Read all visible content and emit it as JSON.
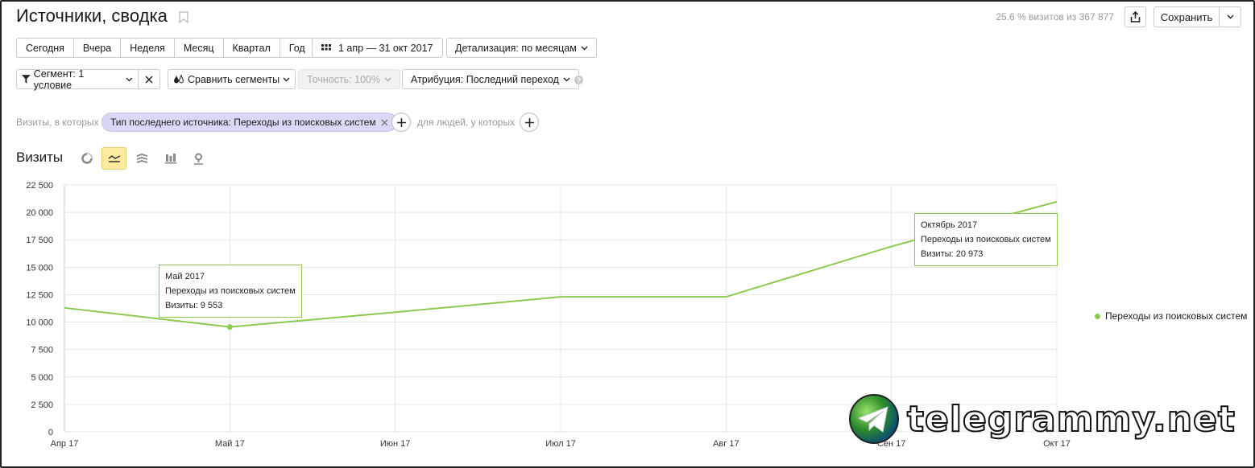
{
  "header": {
    "title": "Источники, сводка",
    "visits_summary": "25.6 % визитов из 367 877",
    "save_label": "Сохранить"
  },
  "periods": [
    "Сегодня",
    "Вчера",
    "Неделя",
    "Месяц",
    "Квартал",
    "Год"
  ],
  "date_range": "1 апр — 31 окт 2017",
  "detail": "Детализация: по месяцам",
  "segment": "Сегмент: 1 условие",
  "compare": "Сравнить сегменты",
  "accuracy": "Точность: 100%",
  "attribution": "Атрибуция: Последний переход",
  "help": "?",
  "filter": {
    "prefix": "Визиты, в которых",
    "chip": "Тип последнего источника: Переходы из поисковых систем",
    "people": "для людей, у которых"
  },
  "section": {
    "title": "Визиты"
  },
  "chart_data": {
    "type": "line",
    "categories": [
      "Апр 17",
      "Май 17",
      "Июн 17",
      "Июл 17",
      "Авг 17",
      "Сен 17",
      "Окт 17"
    ],
    "series": [
      {
        "name": "Переходы из поисковых систем",
        "values": [
          11300,
          9553,
          10900,
          12300,
          12300,
          16900,
          20973
        ],
        "color": "#8cc94e"
      }
    ],
    "ylim": [
      0,
      22500
    ],
    "yticks": [
      0,
      2500,
      5000,
      7500,
      10000,
      12500,
      15000,
      17500,
      20000,
      22500
    ],
    "ytick_labels": [
      "0",
      "2 500",
      "5 000",
      "7 500",
      "10 000",
      "12 500",
      "15 000",
      "17 500",
      "20 000",
      "22 500"
    ],
    "grid": true,
    "legend": "right"
  },
  "tooltips": [
    {
      "title": "Май 2017",
      "series": "Переходы из поисковых систем",
      "value": "Визиты: 9 553"
    },
    {
      "title": "Октябрь 2017",
      "series": "Переходы из поисковых систем",
      "value": "Визиты: 20 973"
    }
  ],
  "watermark": "telegrammy.net",
  "colors": {
    "accent": "#8cc94e",
    "chip": "#d9d9f7",
    "active_view": "#ffeba0"
  }
}
